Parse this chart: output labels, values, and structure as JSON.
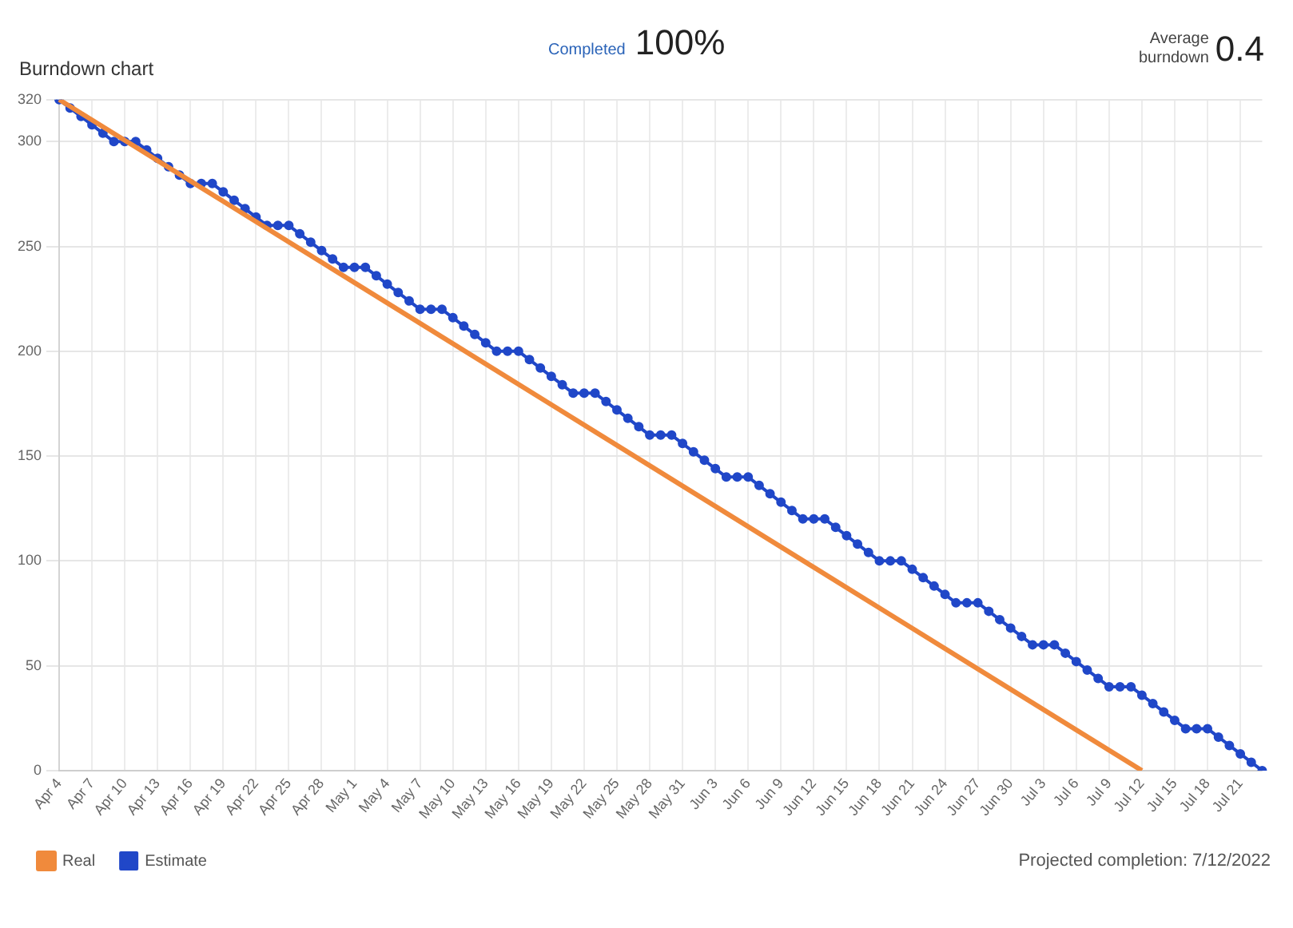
{
  "chart_data": {
    "type": "line",
    "title": "Burndown chart",
    "annotations": [
      "Completed",
      "100%",
      "Average burndown",
      "0.4",
      "Projected completion: 7/12/2022"
    ],
    "categories": [
      "Apr 4",
      null,
      null,
      "Apr 7",
      null,
      null,
      "Apr 10",
      null,
      null,
      "Apr 13",
      null,
      null,
      "Apr 16",
      null,
      null,
      "Apr 19",
      null,
      null,
      "Apr 22",
      null,
      null,
      "Apr 25",
      null,
      null,
      "Apr 28",
      null,
      null,
      "May 1",
      null,
      null,
      "May 4",
      null,
      null,
      "May 7",
      null,
      null,
      "May 10",
      null,
      null,
      "May 13",
      null,
      null,
      "May 16",
      null,
      null,
      "May 19",
      null,
      null,
      "May 22",
      null,
      null,
      "May 25",
      null,
      null,
      "May 28",
      null,
      null,
      "May 31",
      null,
      null,
      "Jun 3",
      null,
      null,
      "Jun 6",
      null,
      null,
      "Jun 9",
      null,
      null,
      "Jun 12",
      null,
      null,
      "Jun 15",
      null,
      null,
      "Jun 18",
      null,
      null,
      "Jun 21",
      null,
      null,
      "Jun 24",
      null,
      null,
      "Jun 27",
      null,
      null,
      "Jun 30",
      null,
      null,
      "Jul 3",
      null,
      null,
      "Jul 6",
      null,
      null,
      "Jul 9",
      null,
      null,
      "Jul 12",
      null,
      null,
      "Jul 15",
      null,
      null,
      "Jul 18",
      null,
      null,
      "Jul 21",
      null,
      null
    ],
    "series": [
      {
        "name": "Real",
        "color": "#f08a3c",
        "x": [
          "Apr 4",
          "Jul 12"
        ],
        "values": [
          320,
          0
        ],
        "marker": "none"
      },
      {
        "name": "Estimate",
        "color": "#2047c8",
        "marker": "circle",
        "values": [
          320,
          316,
          312,
          308,
          304,
          300,
          300,
          300,
          296,
          292,
          288,
          284,
          280,
          280,
          280,
          276,
          272,
          268,
          264,
          260,
          260,
          260,
          256,
          252,
          248,
          244,
          240,
          240,
          240,
          236,
          232,
          228,
          224,
          220,
          220,
          220,
          216,
          212,
          208,
          204,
          200,
          200,
          200,
          196,
          192,
          188,
          184,
          180,
          180,
          180,
          176,
          172,
          168,
          164,
          160,
          160,
          160,
          156,
          152,
          148,
          144,
          140,
          140,
          140,
          136,
          132,
          128,
          124,
          120,
          120,
          120,
          116,
          112,
          108,
          104,
          100,
          100,
          100,
          96,
          92,
          88,
          84,
          80,
          80,
          80,
          76,
          72,
          68,
          64,
          60,
          60,
          60,
          56,
          52,
          48,
          44,
          40,
          40,
          40,
          36,
          32,
          28,
          24,
          20,
          20,
          20,
          16,
          12,
          8,
          4,
          0
        ]
      }
    ],
    "ylim": [
      0,
      320
    ],
    "yticks": [
      0,
      50,
      100,
      150,
      200,
      250,
      300,
      320
    ],
    "grid": true,
    "legend": "bottom left",
    "line_style": "solid"
  }
}
